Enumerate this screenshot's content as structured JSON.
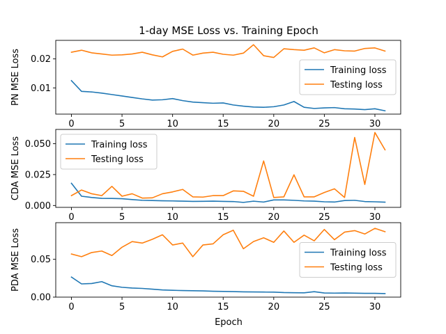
{
  "figure": {
    "title": "1-day MSE Loss vs. Training Epoch",
    "xlabel": "Epoch"
  },
  "colors": {
    "training": "#1f77b4",
    "testing": "#ff7f0e",
    "axes": "#000000",
    "legend_border": "#cccccc"
  },
  "chart_data": [
    {
      "type": "line",
      "ylabel": "PN MSE Loss",
      "xlabel": "",
      "xlim": [
        -1.55,
        32.55
      ],
      "ylim": [
        0.00095,
        0.0264
      ],
      "xticks": [
        0,
        5,
        10,
        15,
        20,
        25,
        30
      ],
      "yticks": [
        0.01,
        0.02
      ],
      "ytick_labels": [
        "0.01",
        "0.02"
      ],
      "legend_position": "center-right",
      "grid": false,
      "x": [
        0,
        1,
        2,
        3,
        4,
        5,
        6,
        7,
        8,
        9,
        10,
        11,
        12,
        13,
        14,
        15,
        16,
        17,
        18,
        19,
        20,
        21,
        22,
        23,
        24,
        25,
        26,
        27,
        28,
        29,
        30,
        31
      ],
      "series": [
        {
          "name": "Training loss",
          "color": "#1f77b4",
          "values": [
            0.0125,
            0.0088,
            0.0086,
            0.0082,
            0.0077,
            0.0072,
            0.0067,
            0.0062,
            0.0058,
            0.0059,
            0.0063,
            0.0056,
            0.0051,
            0.0049,
            0.0047,
            0.0048,
            0.0041,
            0.0037,
            0.0034,
            0.0033,
            0.0035,
            0.0041,
            0.0053,
            0.0033,
            0.0029,
            0.0031,
            0.0032,
            0.0028,
            0.0027,
            0.0025,
            0.0028,
            0.0021
          ]
        },
        {
          "name": "Testing loss",
          "color": "#ff7f0e",
          "values": [
            0.0223,
            0.023,
            0.0221,
            0.0217,
            0.0213,
            0.0214,
            0.0217,
            0.0223,
            0.0214,
            0.0207,
            0.0226,
            0.0234,
            0.0213,
            0.022,
            0.0223,
            0.0216,
            0.0213,
            0.022,
            0.0249,
            0.0211,
            0.0205,
            0.0235,
            0.0232,
            0.023,
            0.0238,
            0.0221,
            0.0232,
            0.0228,
            0.0227,
            0.0236,
            0.0238,
            0.0227
          ]
        }
      ]
    },
    {
      "type": "line",
      "ylabel": "CDA MSE Loss",
      "xlabel": "",
      "xlim": [
        -1.55,
        32.55
      ],
      "ylim": [
        -0.0015,
        0.0615
      ],
      "xticks": [
        0,
        5,
        10,
        15,
        20,
        25,
        30
      ],
      "yticks": [
        0.0,
        0.025,
        0.05
      ],
      "ytick_labels": [
        "0.000",
        "0.025",
        "0.050"
      ],
      "legend_position": "upper-left",
      "grid": false,
      "x": [
        0,
        1,
        2,
        3,
        4,
        5,
        6,
        7,
        8,
        9,
        10,
        11,
        12,
        13,
        14,
        15,
        16,
        17,
        18,
        19,
        20,
        21,
        22,
        23,
        24,
        25,
        26,
        27,
        28,
        29,
        30,
        31
      ],
      "series": [
        {
          "name": "Training loss",
          "color": "#1f77b4",
          "values": [
            0.018,
            0.0075,
            0.0065,
            0.0058,
            0.0057,
            0.0055,
            0.0048,
            0.0042,
            0.004,
            0.0038,
            0.0037,
            0.0035,
            0.0033,
            0.0034,
            0.0035,
            0.0033,
            0.0032,
            0.0025,
            0.0035,
            0.0028,
            0.0045,
            0.0045,
            0.0042,
            0.0037,
            0.0035,
            0.003,
            0.0028,
            0.004,
            0.0042,
            0.0032,
            0.003,
            0.0027
          ]
        },
        {
          "name": "Testing loss",
          "color": "#ff7f0e",
          "values": [
            0.008,
            0.0125,
            0.0095,
            0.008,
            0.0155,
            0.0075,
            0.0095,
            0.006,
            0.0062,
            0.0095,
            0.011,
            0.013,
            0.007,
            0.0068,
            0.008,
            0.008,
            0.0118,
            0.0115,
            0.0075,
            0.036,
            0.0065,
            0.007,
            0.0248,
            0.007,
            0.007,
            0.0105,
            0.0135,
            0.0065,
            0.055,
            0.017,
            0.059,
            0.045
          ]
        }
      ]
    },
    {
      "type": "line",
      "ylabel": "PDA MSE Loss",
      "xlabel": "Epoch",
      "xlim": [
        -1.55,
        32.55
      ],
      "ylim": [
        0.0,
        0.0985
      ],
      "xticks": [
        0,
        5,
        10,
        15,
        20,
        25,
        30
      ],
      "yticks": [
        0.0,
        0.05
      ],
      "ytick_labels": [
        "0.00",
        "0.05"
      ],
      "legend_position": "center-right",
      "grid": false,
      "x": [
        0,
        1,
        2,
        3,
        4,
        5,
        6,
        7,
        8,
        9,
        10,
        11,
        12,
        13,
        14,
        15,
        16,
        17,
        18,
        19,
        20,
        21,
        22,
        23,
        24,
        25,
        26,
        27,
        28,
        29,
        30,
        31
      ],
      "series": [
        {
          "name": "Training loss",
          "color": "#1f77b4",
          "values": [
            0.0265,
            0.0175,
            0.018,
            0.0205,
            0.015,
            0.013,
            0.012,
            0.0115,
            0.0105,
            0.0095,
            0.009,
            0.0087,
            0.0085,
            0.0082,
            0.0078,
            0.0075,
            0.0073,
            0.007,
            0.0068,
            0.0067,
            0.0066,
            0.006,
            0.0058,
            0.0057,
            0.0072,
            0.0055,
            0.0053,
            0.0055,
            0.0052,
            0.005,
            0.005,
            0.0047
          ]
        },
        {
          "name": "Testing loss",
          "color": "#ff7f0e",
          "values": [
            0.057,
            0.0535,
            0.059,
            0.061,
            0.055,
            0.066,
            0.0735,
            0.0715,
            0.0765,
            0.0825,
            0.069,
            0.0715,
            0.0535,
            0.069,
            0.0705,
            0.0825,
            0.0885,
            0.064,
            0.0735,
            0.0785,
            0.0725,
            0.0875,
            0.0725,
            0.082,
            0.0745,
            0.0895,
            0.076,
            0.086,
            0.088,
            0.0835,
            0.091,
            0.0865
          ]
        }
      ]
    }
  ]
}
